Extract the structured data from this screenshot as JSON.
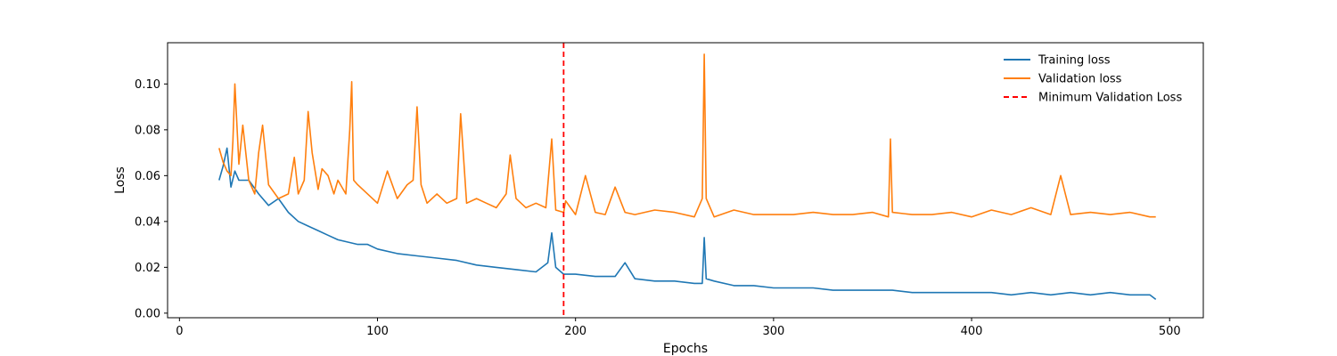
{
  "chart_data": {
    "type": "line",
    "title": "",
    "xlabel": "Epochs",
    "ylabel": "Loss",
    "xlim": [
      -6,
      517
    ],
    "ylim": [
      -0.002,
      0.118
    ],
    "xticks": [
      0,
      100,
      200,
      300,
      400,
      500
    ],
    "yticks": [
      0.0,
      0.02,
      0.04,
      0.06,
      0.08,
      0.1
    ],
    "ytick_labels": [
      "0.00",
      "0.02",
      "0.04",
      "0.06",
      "0.08",
      "0.10"
    ],
    "grid": false,
    "legend_position": "upper-right",
    "series": [
      {
        "name": "Training loss",
        "color": "#1f77b4",
        "x": [
          20,
          22,
          24,
          26,
          28,
          30,
          35,
          40,
          45,
          50,
          55,
          60,
          65,
          70,
          75,
          80,
          85,
          90,
          95,
          100,
          110,
          120,
          130,
          140,
          150,
          160,
          170,
          180,
          186,
          188,
          190,
          194,
          200,
          210,
          220,
          225,
          230,
          240,
          250,
          260,
          264,
          265,
          266,
          270,
          280,
          290,
          300,
          310,
          320,
          330,
          340,
          350,
          360,
          370,
          380,
          390,
          400,
          410,
          420,
          430,
          440,
          450,
          460,
          470,
          480,
          490,
          493
        ],
        "y": [
          0.058,
          0.064,
          0.072,
          0.055,
          0.062,
          0.058,
          0.058,
          0.052,
          0.047,
          0.05,
          0.044,
          0.04,
          0.038,
          0.036,
          0.034,
          0.032,
          0.031,
          0.03,
          0.03,
          0.028,
          0.026,
          0.025,
          0.024,
          0.023,
          0.021,
          0.02,
          0.019,
          0.018,
          0.022,
          0.035,
          0.02,
          0.017,
          0.017,
          0.016,
          0.016,
          0.022,
          0.015,
          0.014,
          0.014,
          0.013,
          0.013,
          0.033,
          0.015,
          0.014,
          0.012,
          0.012,
          0.011,
          0.011,
          0.011,
          0.01,
          0.01,
          0.01,
          0.01,
          0.009,
          0.009,
          0.009,
          0.009,
          0.009,
          0.008,
          0.009,
          0.008,
          0.009,
          0.008,
          0.009,
          0.008,
          0.008,
          0.006
        ]
      },
      {
        "name": "Validation loss",
        "color": "#ff7f0e",
        "x": [
          20,
          22,
          24,
          26,
          27,
          28,
          30,
          32,
          35,
          38,
          40,
          42,
          45,
          50,
          55,
          58,
          60,
          63,
          65,
          67,
          70,
          72,
          75,
          78,
          80,
          84,
          86,
          87,
          88,
          90,
          95,
          100,
          105,
          110,
          115,
          118,
          120,
          122,
          125,
          130,
          135,
          140,
          142,
          145,
          150,
          155,
          160,
          165,
          167,
          170,
          175,
          180,
          185,
          188,
          190,
          194,
          195,
          200,
          205,
          210,
          215,
          220,
          225,
          230,
          240,
          250,
          260,
          264,
          265,
          266,
          270,
          280,
          290,
          300,
          310,
          320,
          330,
          340,
          350,
          358,
          359,
          360,
          370,
          380,
          390,
          400,
          410,
          420,
          430,
          440,
          445,
          450,
          460,
          470,
          480,
          490,
          493
        ],
        "y": [
          0.072,
          0.066,
          0.062,
          0.06,
          0.075,
          0.1,
          0.065,
          0.082,
          0.058,
          0.052,
          0.07,
          0.082,
          0.056,
          0.05,
          0.052,
          0.068,
          0.052,
          0.058,
          0.088,
          0.07,
          0.054,
          0.063,
          0.06,
          0.052,
          0.058,
          0.052,
          0.08,
          0.101,
          0.058,
          0.056,
          0.052,
          0.048,
          0.062,
          0.05,
          0.056,
          0.058,
          0.09,
          0.056,
          0.048,
          0.052,
          0.048,
          0.05,
          0.087,
          0.048,
          0.05,
          0.048,
          0.046,
          0.052,
          0.069,
          0.05,
          0.046,
          0.048,
          0.046,
          0.076,
          0.045,
          0.044,
          0.049,
          0.043,
          0.06,
          0.044,
          0.043,
          0.055,
          0.044,
          0.043,
          0.045,
          0.044,
          0.042,
          0.05,
          0.113,
          0.05,
          0.042,
          0.045,
          0.043,
          0.043,
          0.043,
          0.044,
          0.043,
          0.043,
          0.044,
          0.042,
          0.076,
          0.044,
          0.043,
          0.043,
          0.044,
          0.042,
          0.045,
          0.043,
          0.046,
          0.043,
          0.06,
          0.043,
          0.044,
          0.043,
          0.044,
          0.042,
          0.042
        ]
      }
    ],
    "reference_lines": [
      {
        "name": "Minimum Validation Loss",
        "type": "vertical",
        "x": 194,
        "color": "#ff0000",
        "dash": "dashed"
      }
    ]
  }
}
